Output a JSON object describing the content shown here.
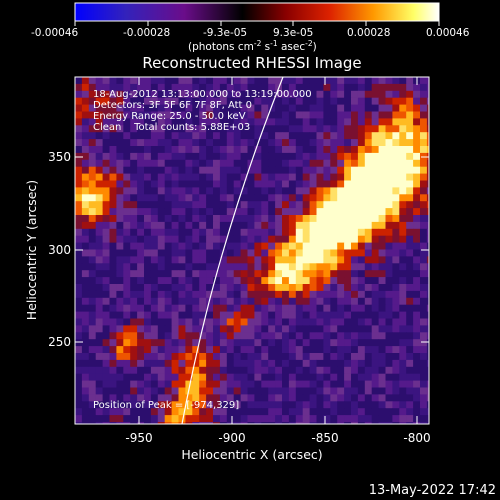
{
  "colorbar": {
    "tick_labels": [
      "-0.00046",
      "-0.00028",
      "-9.3e-05",
      "9.3e-05",
      "0.00028",
      "0.00046"
    ],
    "units": {
      "prefix": "(photons cm",
      "sup1": "-2",
      "mid1": " s",
      "sup2": "-1",
      "mid2": " asec",
      "sup3": "-2",
      "suffix": ")"
    },
    "gradient_colors": [
      "#0000ff",
      "#3322bb",
      "#6a0d8a",
      "#000000",
      "#8a0000",
      "#dd2200",
      "#ff9900",
      "#ffff66",
      "#ffffff"
    ]
  },
  "plot": {
    "title": "Reconstructed RHESSI Image",
    "xlabel": "Heliocentric X (arcsec)",
    "ylabel": "Heliocentric Y (arcsec)",
    "xticks": [
      "-950",
      "-900",
      "-850",
      "-800"
    ],
    "yticks": [
      "250",
      "300",
      "350"
    ],
    "info_lines": [
      "18-Aug-2012 13:13:00.000 to 13:19:00.000",
      "Detectors: 3F 5F 6F 7F 8F, Att 0",
      "Energy Range: 25.0 - 50.0 keV",
      "Clean    Total counts: 5.88E+03"
    ],
    "peak_label": "Position of Peak = [-974,329]",
    "xlim": [
      -985,
      -793
    ],
    "ylim": [
      200,
      385
    ]
  },
  "footer": {
    "timestamp": "13-May-2022 17:42"
  }
}
